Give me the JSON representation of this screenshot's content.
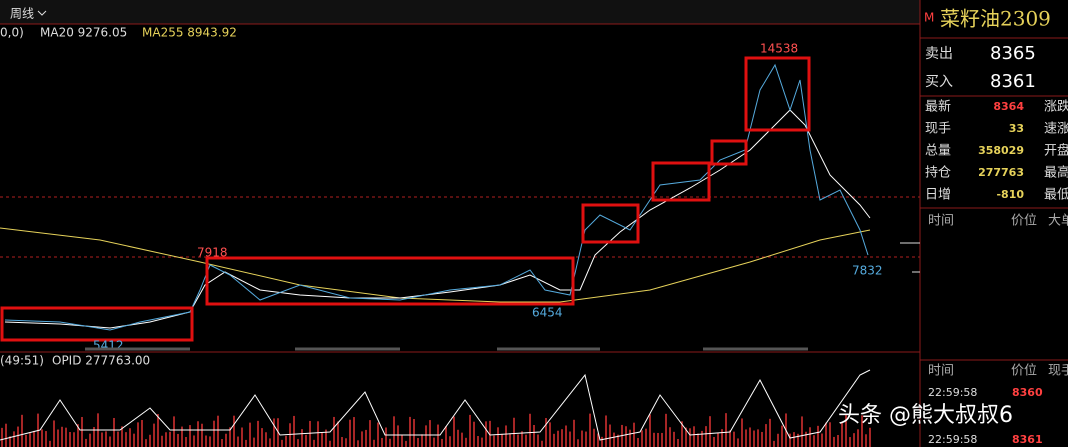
{
  "toolbar": {
    "period": "周线"
  },
  "indicators": {
    "prefix": "0,0)",
    "ma20": "MA20 9276.05",
    "ma255": "MA255 8943.92"
  },
  "annotations": {
    "high_1": 7918,
    "low_1": 5412,
    "low_2": 6454,
    "high_2": 14538,
    "last": 7832
  },
  "sub_panel": {
    "period": "(49:51)",
    "opid": "OPID 277763.00"
  },
  "quote": {
    "flag": "M",
    "symbol": "菜籽油2309",
    "ask_label": "卖出",
    "ask": 8365,
    "bid_label": "买入",
    "bid": 8361,
    "rows": [
      [
        "最新",
        8364,
        "涨跌"
      ],
      [
        "现手",
        33,
        "速涨"
      ],
      [
        "总量",
        358029,
        "开盘"
      ],
      [
        "持仓",
        277763,
        "最高"
      ],
      [
        "日增",
        -810,
        "最低"
      ]
    ]
  },
  "ticks_header": [
    "时间",
    "价位",
    "大单"
  ],
  "trades_header": [
    "时间",
    "价位",
    "现手"
  ],
  "trades": [
    [
      "22:59:58",
      8360
    ],
    [
      "22:59:58",
      8361
    ]
  ],
  "watermark": "头条 @熊大叔叔6"
}
